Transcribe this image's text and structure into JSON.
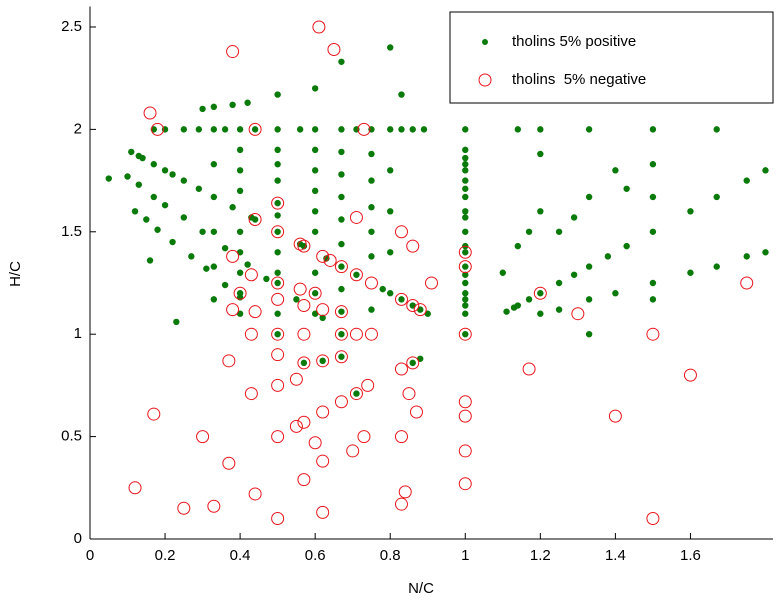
{
  "chart_data": {
    "type": "scatter",
    "x_label": "N/C",
    "y_label": "H/C",
    "xlim": [
      0,
      1.82
    ],
    "ylim": [
      0,
      2.6
    ],
    "xticks": [
      0,
      0.2,
      0.4,
      0.6,
      0.8,
      1,
      1.2,
      1.4,
      1.6
    ],
    "yticks": [
      0,
      0.5,
      1,
      1.5,
      2,
      2.5
    ],
    "legend": "top-right",
    "series": [
      {
        "name": "tholins 5% positive",
        "color": "#0a7a0a",
        "marker": "dot",
        "x": [
          0.17,
          0.2,
          0.25,
          0.29,
          0.33,
          0.36,
          0.4,
          0.44,
          0.5,
          0.56,
          0.6,
          0.67,
          0.71,
          0.75,
          0.8,
          0.83,
          0.86,
          0.89,
          1,
          1.14,
          1.2,
          1.33,
          1.5,
          1.67,
          0.11,
          0.13,
          0.14,
          0.17,
          0.2,
          0.22,
          0.25,
          0.29,
          0.33,
          0.38,
          0.43,
          0.44,
          0.56,
          0.57,
          0.63,
          0.67,
          0.71,
          0.78,
          0.8,
          0.83,
          0.86,
          0.88,
          0.9,
          0.1,
          0.13,
          0.17,
          0.2,
          0.25,
          0.3,
          0.36,
          0.42,
          0.47,
          0.55,
          0.62,
          0.12,
          0.15,
          0.18,
          0.22,
          0.27,
          0.31,
          0.36,
          0.4,
          0.3,
          0.33,
          0.38,
          0.42,
          0.5,
          0.6,
          0.67,
          0.8,
          0.83,
          1,
          1,
          1,
          1,
          1,
          1,
          1,
          1,
          1,
          1,
          1,
          1,
          1,
          1,
          1,
          1,
          1,
          1,
          1,
          1,
          1.11,
          1.13,
          1.14,
          1.17,
          1.2,
          1.25,
          1.29,
          1.33,
          1.38,
          1.43,
          1.5,
          1.6,
          1.67,
          1.75,
          1.8,
          1.2,
          1.25,
          1.33,
          1.4,
          1.5,
          1.6,
          1.67,
          1.75,
          1.8,
          1.1,
          1.14,
          1.17,
          1.2,
          1.33,
          1.5,
          1.5,
          1.4,
          1.43,
          1.25,
          1.33,
          1.5,
          1.2,
          1.29,
          0.05,
          0.23,
          0.16,
          0.57,
          0.62,
          0.67,
          0.71,
          0.86,
          0.88,
          0.5,
          0.5,
          0.5,
          0.5,
          0.5,
          0.5,
          0.5,
          0.5,
          0.5,
          0.5,
          0.5,
          0.67,
          0.67,
          0.67,
          0.67,
          0.67,
          0.67,
          0.67,
          0.67,
          0.4,
          0.4,
          0.4,
          0.4,
          0.4,
          0.4,
          0.4,
          0.4,
          0.6,
          0.6,
          0.6,
          0.6,
          0.6,
          0.6,
          0.6,
          0.6,
          0.75,
          0.75,
          0.75,
          0.75,
          0.75,
          0.75,
          0.33,
          0.33,
          0.33,
          0.33,
          0.8,
          0.8,
          0.8
        ],
        "values": [
          2,
          2,
          2,
          2,
          2,
          2,
          2,
          2,
          2,
          2,
          2,
          2,
          2,
          2,
          2,
          2,
          2,
          2,
          2,
          2,
          2,
          2,
          2,
          2,
          1.89,
          1.87,
          1.86,
          1.83,
          1.8,
          1.78,
          1.75,
          1.71,
          1.67,
          1.62,
          1.57,
          1.56,
          1.44,
          1.43,
          1.37,
          1.33,
          1.29,
          1.22,
          1.2,
          1.17,
          1.14,
          1.12,
          1.1,
          1.77,
          1.73,
          1.67,
          1.63,
          1.57,
          1.5,
          1.42,
          1.34,
          1.27,
          1.17,
          1.08,
          1.6,
          1.56,
          1.51,
          1.45,
          1.38,
          1.32,
          1.24,
          1.18,
          2.1,
          2.11,
          2.12,
          2.13,
          2.17,
          2.2,
          2.33,
          2.4,
          2.17,
          1,
          1.1,
          1.14,
          1.17,
          1.2,
          1.25,
          1.29,
          1.33,
          1.4,
          1.43,
          1.5,
          1.57,
          1.6,
          1.67,
          1.71,
          1.75,
          1.8,
          1.83,
          1.86,
          1.9,
          1.11,
          1.13,
          1.14,
          1.17,
          1.2,
          1.25,
          1.29,
          1.33,
          1.38,
          1.43,
          1.5,
          1.6,
          1.67,
          1.75,
          1.8,
          1.1,
          1.12,
          1.17,
          1.2,
          1.25,
          1.3,
          1.33,
          1.38,
          1.4,
          1.3,
          1.43,
          1.5,
          1.6,
          1.67,
          1.83,
          1.67,
          1.8,
          1.71,
          1.5,
          1.0,
          1.17,
          1.88,
          1.57,
          1.76,
          1.06,
          1.36,
          0.86,
          0.87,
          0.89,
          0.71,
          0.86,
          0.88,
          1,
          1.1,
          1.25,
          1.3,
          1.4,
          1.5,
          1.58,
          1.64,
          1.75,
          1.83,
          1.9,
          1,
          1.11,
          1.22,
          1.44,
          1.56,
          1.67,
          1.78,
          1.89,
          1.1,
          1.2,
          1.3,
          1.4,
          1.5,
          1.7,
          1.8,
          1.9,
          1.1,
          1.2,
          1.3,
          1.5,
          1.6,
          1.7,
          1.8,
          1.9,
          1.12,
          1.38,
          1.5,
          1.62,
          1.75,
          1.88,
          1.17,
          1.33,
          1.5,
          1.83,
          1.4,
          1.6,
          1.8
        ]
      },
      {
        "name": "tholins  5% negative",
        "color": "#e8141b",
        "marker": "circle",
        "x": [
          0.12,
          0.17,
          0.25,
          0.3,
          0.33,
          0.37,
          0.37,
          0.43,
          0.44,
          0.5,
          0.5,
          0.5,
          0.5,
          0.55,
          0.55,
          0.57,
          0.57,
          0.6,
          0.62,
          0.62,
          0.62,
          0.67,
          0.7,
          0.71,
          0.73,
          0.74,
          0.83,
          0.83,
          0.83,
          0.84,
          0.85,
          0.87,
          1,
          1,
          1,
          1,
          1.17,
          1.4,
          1.5,
          1.6,
          1.3,
          1.2,
          1.75,
          1.5,
          1,
          1,
          1,
          0.91,
          0.86,
          0.88,
          0.83,
          0.86,
          0.83,
          0.75,
          0.71,
          0.71,
          0.67,
          0.64,
          0.62,
          0.62,
          0.6,
          0.57,
          0.56,
          0.57,
          0.56,
          0.5,
          0.5,
          0.5,
          0.5,
          0.5,
          0.44,
          0.44,
          0.43,
          0.4,
          0.38,
          0.38,
          0.44,
          0.43,
          0.57,
          0.67,
          0.71,
          0.75,
          0.67,
          0.67,
          0.62,
          0.57,
          0.86,
          0.18,
          0.16,
          0.38,
          0.61,
          0.65,
          0.73
        ],
        "values": [
          0.25,
          0.61,
          0.15,
          0.5,
          0.16,
          0.37,
          0.87,
          0.71,
          0.22,
          0.1,
          0.5,
          0.75,
          0.9,
          0.55,
          0.78,
          0.29,
          0.57,
          0.47,
          0.13,
          0.38,
          0.62,
          0.67,
          0.43,
          0.71,
          0.5,
          0.75,
          0.17,
          0.5,
          0.83,
          0.23,
          0.71,
          0.62,
          0.27,
          0.43,
          0.6,
          0.67,
          0.83,
          0.6,
          0.1,
          0.8,
          1.1,
          1.2,
          1.25,
          1,
          1,
          1.33,
          1.4,
          1.25,
          1.14,
          1.12,
          1.17,
          1.43,
          1.5,
          1.25,
          1.57,
          1.29,
          1.33,
          1.36,
          1.38,
          1.12,
          1.2,
          1.43,
          1.44,
          1.14,
          1.22,
          1.5,
          1.64,
          1.25,
          1.17,
          1.0,
          1.56,
          2.0,
          1.29,
          1.2,
          1.38,
          1.12,
          1.11,
          1.0,
          1.0,
          1.0,
          1.0,
          1.0,
          1.11,
          0.89,
          0.87,
          0.86,
          0.86,
          2.0,
          2.08,
          2.38,
          2.5,
          2.39,
          2.0
        ]
      }
    ]
  }
}
